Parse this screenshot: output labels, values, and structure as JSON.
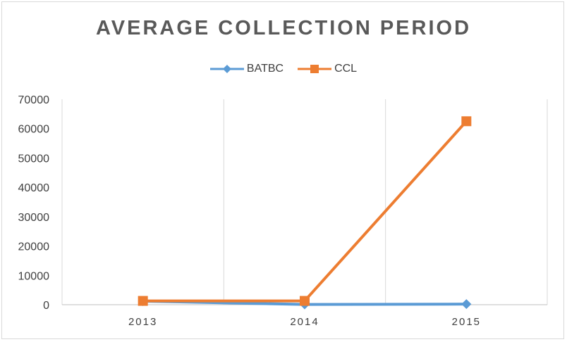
{
  "chart_data": {
    "type": "line",
    "title": "AVERAGE COLLECTION PERIOD",
    "categories": [
      "2013",
      "2014",
      "2015"
    ],
    "series": [
      {
        "name": "BATBC",
        "values": [
          1200,
          100,
          200
        ],
        "color": "#5b9bd5",
        "marker": "diamond"
      },
      {
        "name": "CCL",
        "values": [
          1300,
          1300,
          62500
        ],
        "color": "#ed7d31",
        "marker": "square"
      }
    ],
    "ylim": [
      0,
      70000
    ],
    "yticks": [
      0,
      10000,
      20000,
      30000,
      40000,
      50000,
      60000,
      70000
    ],
    "grid": "vertical",
    "legend_position": "top"
  }
}
